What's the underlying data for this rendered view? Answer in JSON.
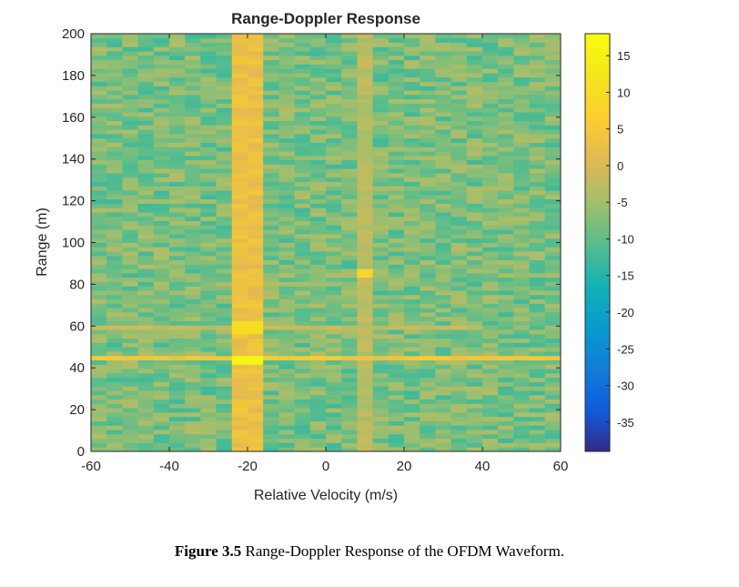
{
  "chart_data": {
    "type": "heatmap",
    "title": "Range-Doppler Response",
    "xlabel": "Relative Velocity (m/s)",
    "ylabel": "Range (m)",
    "xlim": [
      -60,
      60
    ],
    "ylim": [
      0,
      200
    ],
    "xticks": [
      -60,
      -40,
      -20,
      0,
      20,
      40,
      60
    ],
    "yticks": [
      0,
      20,
      40,
      60,
      80,
      100,
      120,
      140,
      160,
      180,
      200
    ],
    "colorbar": {
      "ticks": [
        15,
        10,
        5,
        0,
        -5,
        -10,
        -15,
        -20,
        -25,
        -30,
        -35
      ],
      "range": [
        -39,
        18
      ],
      "colormap": "parula"
    },
    "background_level_db": -8,
    "features": [
      {
        "kind": "vertical_band",
        "velocity": -19,
        "range_span": [
          0,
          200
        ],
        "level_db": 3
      },
      {
        "kind": "vertical_band",
        "velocity": 10,
        "range_span": [
          0,
          200
        ],
        "level_db": -3
      },
      {
        "kind": "horizontal_band",
        "range": 44,
        "velocity_span": [
          -60,
          60
        ],
        "level_db": 5
      },
      {
        "kind": "horizontal_band",
        "range": 59,
        "velocity_span": [
          -60,
          40
        ],
        "level_db": -2
      },
      {
        "kind": "peak",
        "velocity": -19,
        "range": 44,
        "level_db": 16
      },
      {
        "kind": "peak",
        "velocity": -19,
        "range": 59,
        "level_db": 10
      },
      {
        "kind": "peak",
        "velocity": 10,
        "range": 85,
        "level_db": 8
      }
    ]
  },
  "caption": {
    "label": "Figure 3.5",
    "text": " Range-Doppler Response of the OFDM Waveform."
  }
}
